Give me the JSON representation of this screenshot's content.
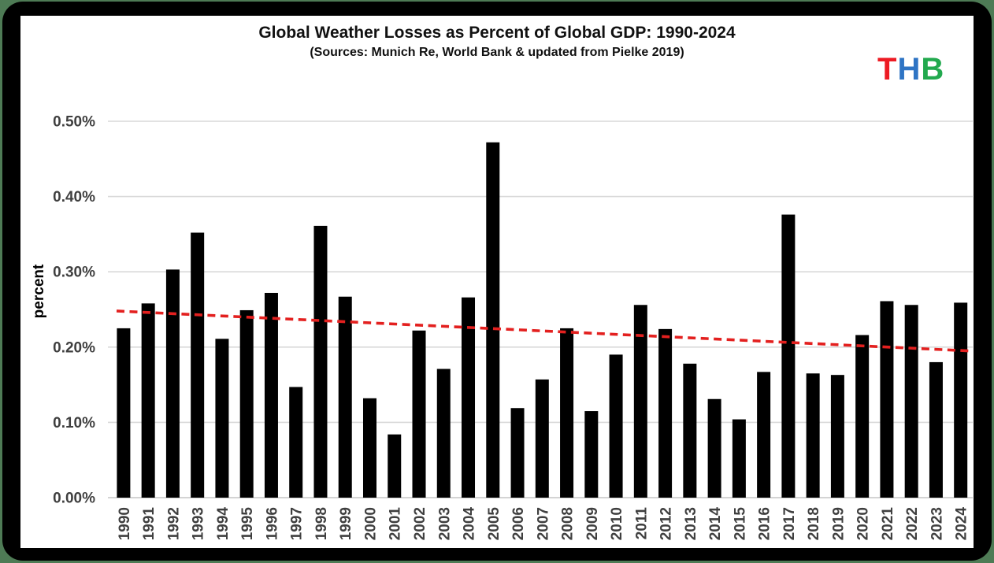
{
  "page": {
    "background_color": "#4e7b55",
    "frame_color": "#000000",
    "panel_color": "#ffffff"
  },
  "logo": {
    "text": "THB",
    "letters": [
      {
        "ch": "T",
        "color": "#ed1b23"
      },
      {
        "ch": "H",
        "color": "#2e74c4"
      },
      {
        "ch": "B",
        "color": "#22a94e"
      }
    ]
  },
  "chart_data": {
    "type": "bar",
    "title": "Global Weather Losses as Percent of Global GDP: 1990-2024",
    "subtitle": "(Sources: Munich Re, World Bank & updated from Pielke 2019)",
    "xlabel": "",
    "ylabel": "percent",
    "categories": [
      1990,
      1991,
      1992,
      1993,
      1994,
      1995,
      1996,
      1997,
      1998,
      1999,
      2000,
      2001,
      2002,
      2003,
      2004,
      2005,
      2006,
      2007,
      2008,
      2009,
      2010,
      2011,
      2012,
      2013,
      2014,
      2015,
      2016,
      2017,
      2018,
      2019,
      2020,
      2021,
      2022,
      2023,
      2024
    ],
    "values": [
      0.225,
      0.258,
      0.303,
      0.352,
      0.211,
      0.249,
      0.272,
      0.147,
      0.361,
      0.267,
      0.132,
      0.084,
      0.222,
      0.171,
      0.266,
      0.472,
      0.119,
      0.157,
      0.225,
      0.115,
      0.19,
      0.256,
      0.224,
      0.178,
      0.131,
      0.104,
      0.167,
      0.376,
      0.165,
      0.163,
      0.216,
      0.261,
      0.256,
      0.18,
      0.259
    ],
    "values_unit": "percent of global GDP",
    "ylim": [
      0,
      0.5
    ],
    "y_ticks": [
      "0.00%",
      "0.10%",
      "0.20%",
      "0.30%",
      "0.40%",
      "0.50%"
    ],
    "y_tick_values": [
      0.0,
      0.1,
      0.2,
      0.3,
      0.4,
      0.5
    ],
    "grid": true,
    "legend": "none",
    "bar_color": "#000000",
    "gridline_color": "#d9d9d9",
    "baseline_color": "#c6c6c6",
    "tick_text_color": "#3f3f3f",
    "axis_title_color": "#000000",
    "trend_line": {
      "style": "dashed",
      "color": "#e3201f",
      "start_value": 0.2475,
      "end_value": 0.1955
    }
  }
}
